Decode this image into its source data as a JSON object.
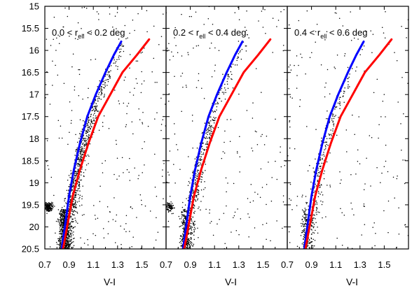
{
  "chart_data": [
    {
      "type": "scatter",
      "panel_label": {
        "pre": "0.0 < r",
        "sub": "ell",
        "post": " < 0.2 deg"
      },
      "xlabel": "V-I",
      "ylabel": "",
      "xlim": [
        0.7,
        1.7
      ],
      "ylim": [
        20.5,
        15
      ],
      "y_inverted": true,
      "x_tick_labels": [
        "0.7",
        "0.9",
        "1.1",
        "1.3",
        "1.5"
      ],
      "y_tick_labels": [
        "15",
        "15.5",
        "16",
        "16.5",
        "17",
        "17.5",
        "18",
        "18.5",
        "19",
        "19.5",
        "20",
        "20.5"
      ],
      "series": [
        {
          "name": "",
          "color": "#0000ff",
          "x": [
            0.84,
            0.87,
            0.9,
            0.94,
            0.99,
            1.05,
            1.12,
            1.2,
            1.27,
            1.33
          ],
          "y": [
            20.5,
            19.9,
            19.3,
            18.7,
            18.1,
            17.5,
            17.0,
            16.5,
            16.1,
            15.8
          ]
        },
        {
          "name": "",
          "color": "#ff0000",
          "x": [
            0.85,
            0.89,
            0.93,
            0.99,
            1.06,
            1.14,
            1.24,
            1.34,
            1.46,
            1.56
          ],
          "y": [
            20.5,
            19.9,
            19.3,
            18.7,
            18.1,
            17.5,
            17.0,
            16.5,
            16.1,
            15.75
          ]
        }
      ],
      "point_density": "dense",
      "red_clump": true,
      "grid": false
    },
    {
      "type": "scatter",
      "panel_label": {
        "pre": "0.2 < r",
        "sub": "ell",
        "post": " < 0.4 deg"
      },
      "xlabel": "V-I",
      "ylabel": "",
      "xlim": [
        0.7,
        1.7
      ],
      "ylim": [
        20.5,
        15
      ],
      "y_inverted": true,
      "x_tick_labels": [
        "0.7",
        "0.9",
        "1.1",
        "1.3",
        "1.5"
      ],
      "series": [
        {
          "name": "",
          "color": "#0000ff",
          "x": [
            0.84,
            0.87,
            0.9,
            0.94,
            0.99,
            1.05,
            1.12,
            1.2,
            1.27,
            1.33
          ],
          "y": [
            20.5,
            19.9,
            19.3,
            18.7,
            18.1,
            17.5,
            17.0,
            16.5,
            16.1,
            15.8
          ]
        },
        {
          "name": "",
          "color": "#ff0000",
          "x": [
            0.85,
            0.89,
            0.93,
            0.99,
            1.06,
            1.14,
            1.24,
            1.34,
            1.46,
            1.56
          ],
          "y": [
            20.5,
            19.9,
            19.3,
            18.7,
            18.1,
            17.5,
            17.0,
            16.5,
            16.1,
            15.75
          ]
        }
      ],
      "point_density": "medium",
      "red_clump": true,
      "grid": false
    },
    {
      "type": "scatter",
      "panel_label": {
        "pre": "0.4 < r",
        "sub": "ell",
        "post": " < 0.6 deg"
      },
      "xlabel": "V-I",
      "ylabel": "",
      "xlim": [
        0.7,
        1.7
      ],
      "ylim": [
        20.5,
        15
      ],
      "y_inverted": true,
      "x_tick_labels": [
        "0.7",
        "0.9",
        "1.1",
        "1.3",
        "1.5"
      ],
      "series": [
        {
          "name": "",
          "color": "#0000ff",
          "x": [
            0.84,
            0.87,
            0.9,
            0.94,
            0.99,
            1.05,
            1.12,
            1.2,
            1.27,
            1.33
          ],
          "y": [
            20.5,
            19.9,
            19.3,
            18.7,
            18.1,
            17.5,
            17.0,
            16.5,
            16.1,
            15.8
          ]
        },
        {
          "name": "",
          "color": "#ff0000",
          "x": [
            0.85,
            0.89,
            0.93,
            0.99,
            1.06,
            1.14,
            1.24,
            1.34,
            1.46,
            1.56
          ],
          "y": [
            20.5,
            19.9,
            19.3,
            18.7,
            18.1,
            17.5,
            17.0,
            16.5,
            16.1,
            15.75
          ]
        }
      ],
      "point_density": "sparse",
      "red_clump": false,
      "grid": false
    }
  ]
}
